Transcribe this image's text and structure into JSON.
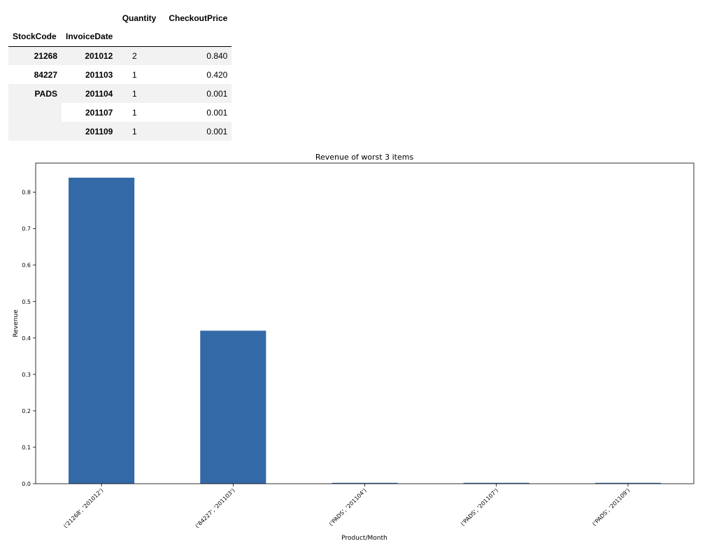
{
  "table": {
    "columns": [
      "Quantity",
      "CheckoutPrice"
    ],
    "index_names": [
      "StockCode",
      "InvoiceDate"
    ],
    "rows": [
      {
        "stock": "21268",
        "date": "201012",
        "quantity": "2",
        "price": "0.840"
      },
      {
        "stock": "84227",
        "date": "201103",
        "quantity": "1",
        "price": "0.420"
      },
      {
        "stock": "PADS",
        "date": "201104",
        "quantity": "1",
        "price": "0.001"
      },
      {
        "stock": "",
        "date": "201107",
        "quantity": "1",
        "price": "0.001"
      },
      {
        "stock": "",
        "date": "201109",
        "quantity": "1",
        "price": "0.001"
      }
    ]
  },
  "chart_data": {
    "type": "bar",
    "title": "Revenue of worst 3 items",
    "xlabel": "Product/Month",
    "ylabel": "Revenue",
    "categories": [
      "('21268', '201012')",
      "('84227', '201103')",
      "('PADS', '201104')",
      "('PADS', '201107')",
      "('PADS', '201109')"
    ],
    "values": [
      0.84,
      0.42,
      0.001,
      0.001,
      0.001
    ],
    "ylim": [
      0,
      0.88
    ],
    "yticks": [
      "0.0",
      "0.1",
      "0.2",
      "0.3",
      "0.4",
      "0.5",
      "0.6",
      "0.7",
      "0.8"
    ],
    "bar_color": "#3369a7",
    "grid": false,
    "legend": "none"
  }
}
